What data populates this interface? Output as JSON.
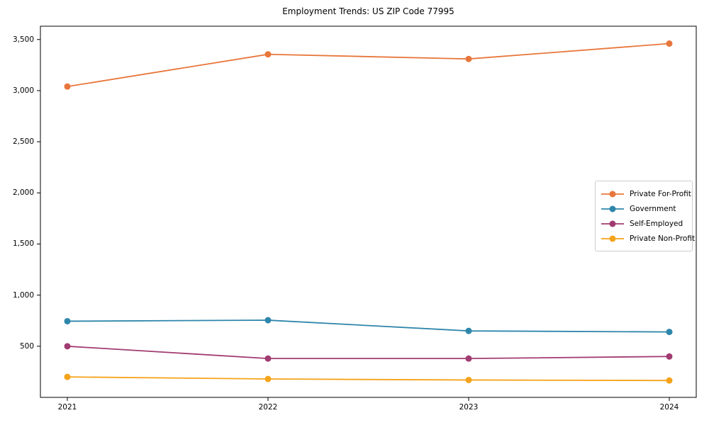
{
  "figure": {
    "background": "#ffffff",
    "frame_color": "#000000"
  },
  "chart_data": {
    "type": "line",
    "title": "Employment Trends: US ZIP Code 77995",
    "xlabel": "",
    "ylabel": "",
    "categories": [
      "2021",
      "2022",
      "2023",
      "2024"
    ],
    "series": [
      {
        "name": "Private For-Profit",
        "color": "#E8763B",
        "values": [
          3040,
          3355,
          3310,
          3460
        ]
      },
      {
        "name": "Government",
        "color": "#2E86AB",
        "values": [
          745,
          755,
          650,
          640
        ]
      },
      {
        "name": "Self-Employed",
        "color": "#A23B72",
        "values": [
          500,
          380,
          380,
          400
        ]
      },
      {
        "name": "Private Non-Profit",
        "color": "#F5A31A",
        "values": [
          200,
          180,
          170,
          165
        ]
      }
    ],
    "ylim": [
      0,
      3630
    ],
    "yticks": [
      500,
      1000,
      1500,
      2000,
      2500,
      3000,
      3500
    ],
    "yticklabels": [
      "500",
      "1,000",
      "1,500",
      "2,000",
      "2,500",
      "3,000",
      "3,500"
    ],
    "grid": false,
    "marker": "circle",
    "legend_position": "center right"
  }
}
